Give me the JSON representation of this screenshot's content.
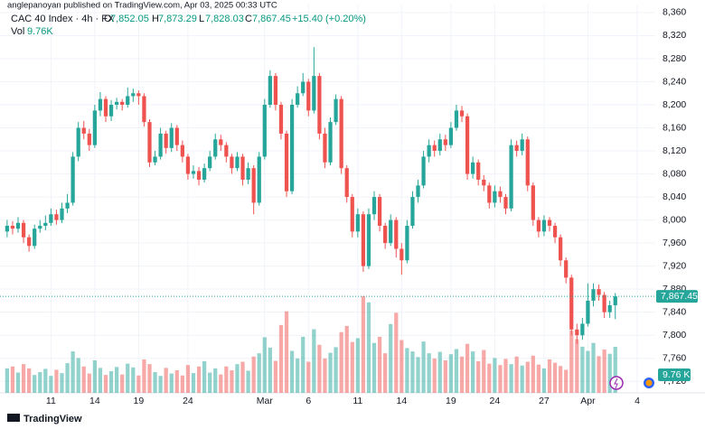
{
  "header": {
    "publisher": "anglepanoyan published on TradingView.com, Apr 03, 2025 00:33 UTC"
  },
  "legend": {
    "symbol": "CAC 40 Index · 4h · FX",
    "open_label": "O",
    "open": "7,852.05",
    "high_label": "H",
    "high": "7,873.29",
    "low_label": "L",
    "low": "7,828.03",
    "close_label": "C",
    "close": "7,867.45",
    "change": "+15.40 (+0.20%)",
    "volume_label": "Vol",
    "volume": "9.76K",
    "volume_tag": "9.76 K"
  },
  "footer": {
    "brand": "TradingView"
  },
  "chart_data": {
    "type": "candlestick",
    "up_color": "#26a69a",
    "down_color": "#ef5350",
    "grid": true,
    "ylim": [
      7700,
      8374
    ],
    "yticks": [
      {
        "value": 7720,
        "label": "7,720"
      },
      {
        "value": 7760,
        "label": "7,760"
      },
      {
        "value": 7800,
        "label": "7,800"
      },
      {
        "value": 7840,
        "label": "7,840"
      },
      {
        "value": 7880,
        "label": "7,880"
      },
      {
        "value": 7920,
        "label": "7,920"
      },
      {
        "value": 7960,
        "label": "7,960"
      },
      {
        "value": 8000,
        "label": "8,000"
      },
      {
        "value": 8040,
        "label": "8,040"
      },
      {
        "value": 8080,
        "label": "8,080"
      },
      {
        "value": 8120,
        "label": "8,120"
      },
      {
        "value": 8160,
        "label": "8,160"
      },
      {
        "value": 8200,
        "label": "8,200"
      },
      {
        "value": 8240,
        "label": "8,240"
      },
      {
        "value": 8280,
        "label": "8,280"
      },
      {
        "value": 8320,
        "label": "8,320"
      },
      {
        "value": 8360,
        "label": "8,360"
      }
    ],
    "xlim": [
      -1.3,
      118.3
    ],
    "xticks": [
      {
        "value": 8,
        "label": "11"
      },
      {
        "value": 16,
        "label": "14"
      },
      {
        "value": 24,
        "label": "19"
      },
      {
        "value": 33,
        "label": "24"
      },
      {
        "value": 47,
        "label": "Mar"
      },
      {
        "value": 55,
        "label": "6"
      },
      {
        "value": 64,
        "label": "11"
      },
      {
        "value": 72,
        "label": "14"
      },
      {
        "value": 81,
        "label": "19"
      },
      {
        "value": 89,
        "label": "24"
      },
      {
        "value": 98,
        "label": "27"
      },
      {
        "value": 106,
        "label": "Apr"
      },
      {
        "value": 115,
        "label": "4"
      }
    ],
    "open": [
      7980,
      7990,
      7985,
      7995,
      7970,
      7955,
      7985,
      7990,
      7995,
      8010,
      8000,
      8020,
      8030,
      8110,
      8160,
      8150,
      8130,
      8190,
      8210,
      8180,
      8200,
      8205,
      8200,
      8215,
      8220,
      8215,
      8170,
      8100,
      8110,
      8150,
      8125,
      8160,
      8130,
      8110,
      8080,
      8085,
      8070,
      8090,
      8110,
      8140,
      8130,
      8110,
      8090,
      8110,
      8070,
      8090,
      8030,
      8110,
      8200,
      8250,
      8200,
      8150,
      8050,
      8200,
      8220,
      8240,
      8190,
      8250,
      8150,
      8100,
      8170,
      8210,
      8090,
      8040,
      7980,
      8010,
      7920,
      8010,
      8040,
      7990,
      7960,
      8000,
      7950,
      7930,
      7990,
      8040,
      8060,
      8110,
      8130,
      8120,
      8140,
      8130,
      8160,
      8190,
      8180,
      8080,
      8100,
      8070,
      8060,
      8030,
      8050,
      8040,
      8020,
      8130,
      8120,
      8140,
      8060,
      8000,
      7980,
      8000,
      7990,
      7970,
      7930,
      7900,
      7810,
      7800,
      7820,
      7860,
      7880,
      7870,
      7840,
      7852.05
    ],
    "high": [
      8000,
      7998,
      8005,
      8000,
      7975,
      7992,
      8000,
      8008,
      8020,
      8018,
      8030,
      8045,
      8118,
      8170,
      8172,
      8158,
      8200,
      8222,
      8215,
      8208,
      8212,
      8210,
      8230,
      8228,
      8225,
      8220,
      8175,
      8120,
      8160,
      8155,
      8168,
      8165,
      8138,
      8115,
      8095,
      8092,
      8098,
      8120,
      8150,
      8148,
      8135,
      8115,
      8118,
      8115,
      8100,
      8095,
      8118,
      8210,
      8260,
      8255,
      8205,
      8155,
      8210,
      8232,
      8255,
      8245,
      8300,
      8255,
      8160,
      8178,
      8218,
      8215,
      8095,
      8045,
      8020,
      8015,
      8020,
      8050,
      8045,
      7995,
      8010,
      8005,
      7960,
      8000,
      8050,
      8070,
      8120,
      8140,
      8138,
      8150,
      8148,
      8170,
      8200,
      8198,
      8185,
      8110,
      8105,
      8078,
      8065,
      8060,
      8058,
      8045,
      8140,
      8138,
      8150,
      8145,
      8065,
      8005,
      8008,
      8005,
      7995,
      7975,
      7935,
      7905,
      7820,
      7830,
      7890,
      7890,
      7888,
      7875,
      7860,
      7873.29
    ],
    "low": [
      7970,
      7975,
      7978,
      7960,
      7945,
      7950,
      7978,
      7982,
      7990,
      7992,
      7995,
      8012,
      8025,
      8102,
      8140,
      8120,
      8125,
      8180,
      8170,
      8172,
      8192,
      8190,
      8195,
      8205,
      8200,
      8162,
      8092,
      8095,
      8105,
      8115,
      8118,
      8120,
      8100,
      8070,
      8072,
      8060,
      8065,
      8085,
      8105,
      8120,
      8100,
      8080,
      8085,
      8060,
      8062,
      8010,
      8025,
      8105,
      8195,
      8190,
      8140,
      8040,
      8045,
      8195,
      8215,
      8180,
      8185,
      8140,
      8090,
      8095,
      8165,
      8080,
      8030,
      7970,
      7970,
      7910,
      7915,
      8000,
      7980,
      7950,
      7955,
      7935,
      7905,
      7925,
      7985,
      8030,
      8055,
      8100,
      8110,
      8112,
      8120,
      8125,
      8155,
      8170,
      8070,
      8072,
      8060,
      8050,
      8020,
      8022,
      8030,
      8010,
      8015,
      8110,
      8112,
      8050,
      7990,
      7970,
      7972,
      7980,
      7960,
      7920,
      7890,
      7800,
      7785,
      7792,
      7815,
      7850,
      7860,
      7830,
      7830,
      7828.03
    ],
    "close": [
      7990,
      7985,
      7995,
      7970,
      7955,
      7985,
      7990,
      7995,
      8010,
      8000,
      8020,
      8030,
      8110,
      8160,
      8150,
      8130,
      8190,
      8210,
      8180,
      8200,
      8205,
      8200,
      8215,
      8220,
      8215,
      8170,
      8100,
      8110,
      8150,
      8125,
      8160,
      8130,
      8110,
      8080,
      8085,
      8070,
      8090,
      8110,
      8140,
      8130,
      8110,
      8090,
      8110,
      8070,
      8090,
      8030,
      8110,
      8200,
      8250,
      8200,
      8150,
      8050,
      8200,
      8220,
      8240,
      8190,
      8250,
      8150,
      8100,
      8170,
      8210,
      8090,
      8040,
      7980,
      8010,
      7920,
      8010,
      8040,
      7990,
      7960,
      8000,
      7950,
      7930,
      7990,
      8040,
      8060,
      8110,
      8130,
      8120,
      8140,
      8130,
      8160,
      8190,
      8180,
      8080,
      8100,
      8070,
      8060,
      8030,
      8050,
      8040,
      8020,
      8130,
      8120,
      8140,
      8060,
      8000,
      7980,
      8000,
      7990,
      7970,
      7930,
      7900,
      7810,
      7800,
      7820,
      7860,
      7880,
      7870,
      7840,
      7852.05,
      7867.45
    ],
    "volume": [
      5200,
      5600,
      4300,
      6100,
      5200,
      3800,
      4400,
      5100,
      3600,
      4900,
      4200,
      6300,
      8800,
      7400,
      5600,
      4100,
      6900,
      5300,
      3800,
      4600,
      5500,
      3900,
      6200,
      5400,
      3700,
      7100,
      6100,
      4400,
      3600,
      5300,
      4100,
      4800,
      3700,
      5900,
      4200,
      5600,
      6700,
      4300,
      5200,
      3900,
      5600,
      4800,
      6100,
      6600,
      4700,
      7700,
      8400,
      11800,
      9600,
      6800,
      14400,
      17300,
      8900,
      7300,
      11900,
      6600,
      13500,
      10200,
      7300,
      8500,
      9700,
      12900,
      14200,
      10800,
      11600,
      20500,
      19200,
      10600,
      11900,
      8400,
      14600,
      17000,
      11200,
      9500,
      8800,
      7600,
      10900,
      8400,
      7300,
      8700,
      6900,
      8200,
      9300,
      7700,
      10400,
      8800,
      6700,
      9100,
      6200,
      7400,
      5900,
      7200,
      6100,
      7700,
      5800,
      6600,
      7900,
      6000,
      5200,
      7100,
      6400,
      5700,
      4900,
      13200,
      11400,
      9800,
      8900,
      10600,
      7800,
      9200,
      8300,
      9760
    ]
  }
}
